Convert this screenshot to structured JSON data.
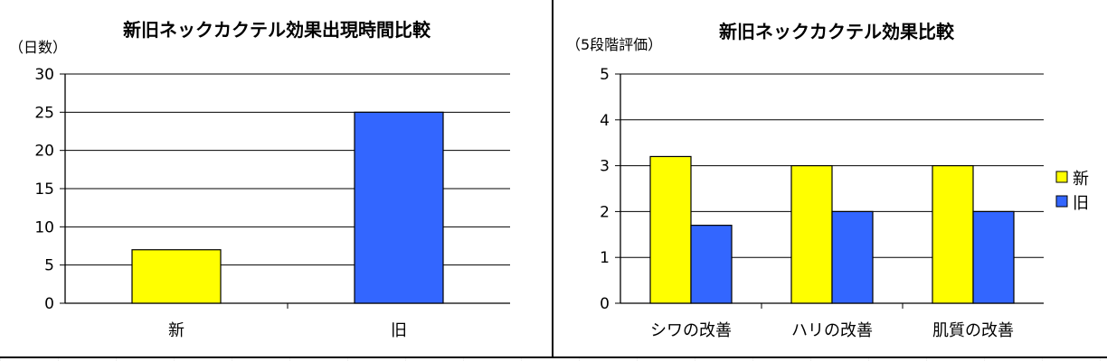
{
  "chart_data": [
    {
      "type": "bar",
      "title": "新旧ネックカクテル効果出現時間比較",
      "ylabel": "（日数）",
      "xlabel": "",
      "categories": [
        "新",
        "旧"
      ],
      "values": [
        7,
        25
      ],
      "colors": [
        "#ffff00",
        "#3366ff"
      ],
      "ylim": [
        0,
        30
      ],
      "yticks": [
        "0",
        "5",
        "10",
        "15",
        "20",
        "25",
        "30"
      ],
      "grid": true
    },
    {
      "type": "bar",
      "title": "新旧ネックカクテル効果比較",
      "ylabel": "（5段階評価）",
      "xlabel": "",
      "categories": [
        "シワの改善",
        "ハリの改善",
        "肌質の改善"
      ],
      "series": [
        {
          "name": "新",
          "values": [
            3.2,
            3.0,
            3.0
          ],
          "color": "#ffff00"
        },
        {
          "name": "旧",
          "values": [
            1.7,
            2.0,
            2.0
          ],
          "color": "#3366ff"
        }
      ],
      "ylim": [
        0,
        5
      ],
      "yticks": [
        "0",
        "1",
        "2",
        "3",
        "4",
        "5"
      ],
      "grid": true,
      "legend_position": "right"
    }
  ]
}
